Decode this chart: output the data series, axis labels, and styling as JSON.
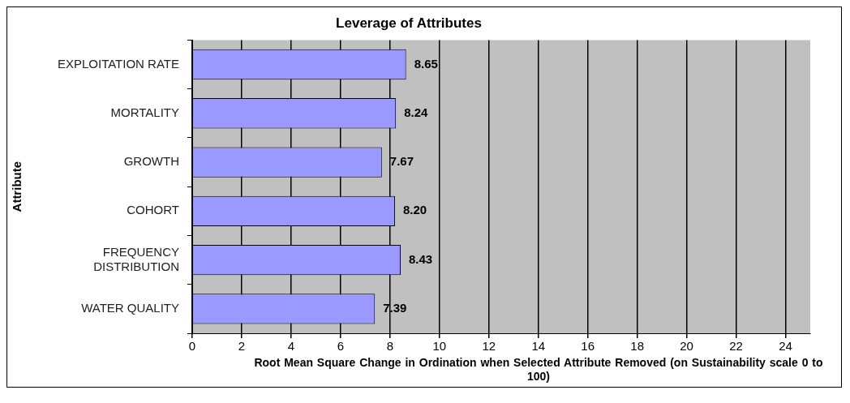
{
  "chart_data": {
    "type": "bar",
    "orientation": "horizontal",
    "title": "Leverage of Attributes",
    "categories": [
      "EXPLOITATION RATE",
      "MORTALITY",
      "GROWTH",
      "COHORT",
      "FREQUENCY\nDISTRIBUTION",
      "WATER QUALITY"
    ],
    "values": [
      8.65,
      8.24,
      7.67,
      8.2,
      8.43,
      7.39
    ],
    "color": "#9999ff",
    "xlim": [
      0,
      25
    ],
    "xticks": [
      0,
      2,
      4,
      6,
      8,
      10,
      12,
      14,
      16,
      18,
      20,
      22,
      24
    ],
    "xlabel": "Root Mean Square Change in Ordination when Selected Attribute Removed (on Sustainability scale 0 to 100)",
    "ylabel": "Attribute",
    "value_labels": [
      "8.65",
      "8.24",
      "7.67",
      "8.20",
      "8.43",
      "7.39"
    ],
    "grid": "x",
    "legend": false
  }
}
